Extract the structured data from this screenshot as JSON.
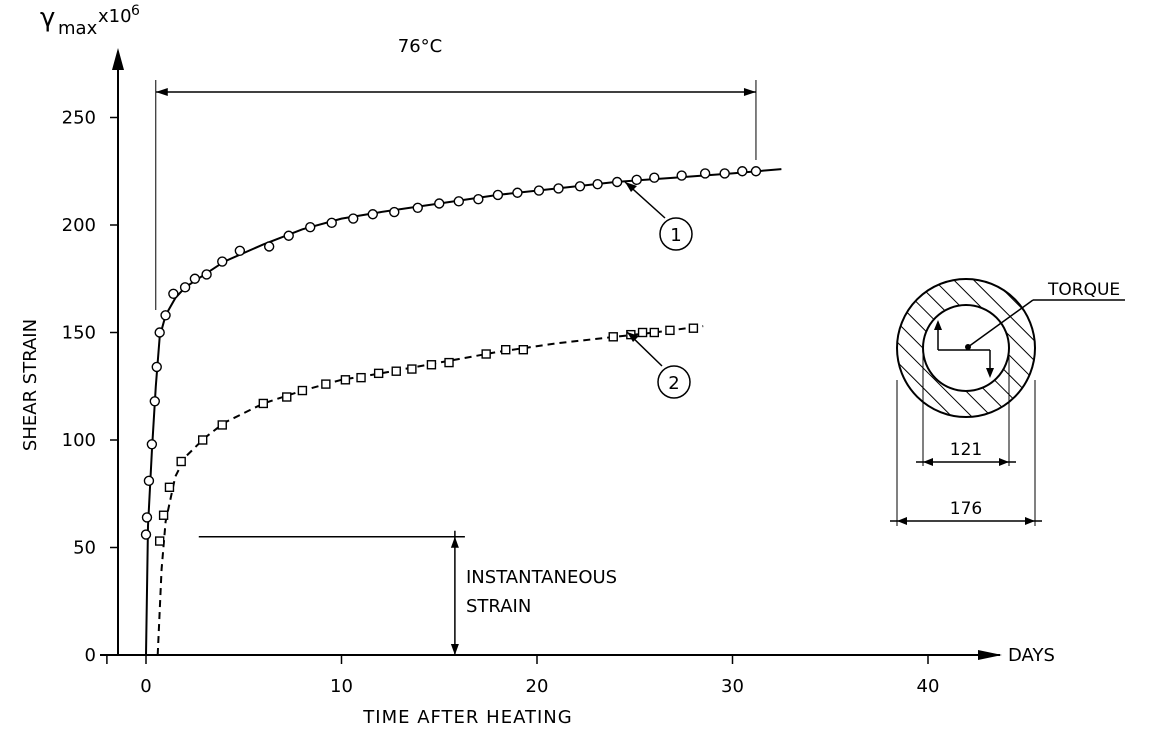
{
  "chart_data": {
    "type": "line",
    "title": "",
    "ylabel_symbol": "γ",
    "ylabel_sub": "max",
    "ylabel_scale": "x10",
    "ylabel_exp": "6",
    "ylabel": "SHEAR STRAIN",
    "xlabel": "TIME AFTER HEATING",
    "xunit": "DAYS",
    "xlim": [
      -2,
      44
    ],
    "ylim": [
      0,
      260
    ],
    "xticks": [
      0,
      10,
      20,
      30,
      40
    ],
    "yticks": [
      0,
      50,
      100,
      150,
      200,
      250
    ],
    "grid": false,
    "series": [
      {
        "name": "1",
        "marker": "circle",
        "linestyle": "solid",
        "x": [
          0.0,
          0.05,
          0.15,
          0.3,
          0.45,
          0.55,
          0.7,
          1.0,
          1.4,
          2.0,
          2.5,
          3.1,
          3.9,
          4.8,
          6.3,
          7.3,
          8.4,
          9.5,
          10.6,
          11.6,
          12.7,
          13.9,
          15.0,
          16.0,
          17.0,
          18.0,
          19.0,
          20.1,
          21.1,
          22.2,
          23.1,
          24.1,
          25.1,
          26.0,
          27.4,
          28.6,
          29.6,
          30.5,
          31.2
        ],
        "y": [
          56,
          64,
          81,
          98,
          118,
          134,
          150,
          158,
          168,
          171,
          175,
          177,
          183,
          188,
          190,
          195,
          199,
          201,
          203,
          205,
          206,
          208,
          210,
          211,
          212,
          214,
          215,
          216,
          217,
          218,
          219,
          220,
          221,
          222,
          223,
          224,
          224,
          225,
          225
        ],
        "line_x": [
          0.0,
          0.1,
          0.3,
          0.5,
          0.7,
          1.0,
          1.5,
          2.0,
          3.0,
          4.0,
          6.0,
          8.0,
          10.0,
          12.0,
          15.0,
          18.0,
          21.0,
          24.0,
          27.0,
          30.0,
          32.5
        ],
        "line_y": [
          0,
          60,
          95,
          125,
          148,
          158,
          166,
          171,
          177,
          183,
          191,
          198,
          203,
          206,
          210,
          214,
          217,
          220,
          222,
          224,
          226
        ]
      },
      {
        "name": "2",
        "marker": "square",
        "linestyle": "dashed",
        "x": [
          0.7,
          0.9,
          1.2,
          1.8,
          2.9,
          3.9,
          6.0,
          7.2,
          8.0,
          9.2,
          10.2,
          11.0,
          11.9,
          12.8,
          13.6,
          14.6,
          15.5,
          17.4,
          18.4,
          19.3,
          23.9,
          24.8,
          25.4,
          26.0,
          26.8,
          28.0
        ],
        "y": [
          53,
          65,
          78,
          90,
          100,
          107,
          117,
          120,
          123,
          126,
          128,
          129,
          131,
          132,
          133,
          135,
          136,
          140,
          142,
          142,
          148,
          149,
          150,
          150,
          151,
          152
        ],
        "line_x": [
          0.6,
          0.8,
          1.0,
          1.5,
          2.0,
          3.0,
          4.0,
          6.0,
          8.0,
          10.0,
          12.0,
          15.0,
          18.0,
          21.0,
          24.0,
          26.0,
          28.5
        ],
        "line_y": [
          0,
          40,
          62,
          83,
          92,
          101,
          108,
          117,
          123,
          128,
          131,
          136,
          141,
          145,
          148,
          150,
          153
        ]
      }
    ],
    "annotations": {
      "temperature": "76°C",
      "temperature_span": [
        0.5,
        31.2
      ],
      "instantaneous_label_1": "INSTANTANEOUS",
      "instantaneous_label_2": "STRAIN",
      "instantaneous_marker_x": 15.8,
      "instantaneous_value": 55,
      "curve_labels": [
        "1",
        "2"
      ]
    },
    "inset": {
      "load_label": "TORQUE",
      "inner_diameter": "121",
      "outer_diameter": "176"
    }
  }
}
